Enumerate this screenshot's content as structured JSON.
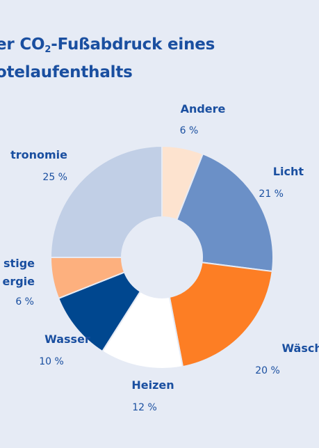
{
  "title": {
    "line1_pre": "er CO",
    "line1_sub": "2",
    "line1_post": "-Fußabdruck eines",
    "line2": "otelaufenthalts"
  },
  "colors": {
    "background": "#e6ebf5",
    "text": "#1a4fa0"
  },
  "chart_data": {
    "type": "pie",
    "donut": true,
    "labels": [
      "Andere",
      "Licht",
      "Wäsche",
      "Heizen",
      "Wasser",
      "stige ergie",
      "tronomie"
    ],
    "values": [
      6,
      21,
      20,
      12,
      10,
      6,
      25
    ],
    "value_labels": [
      "6 %",
      "21 %",
      "20 %",
      "12 %",
      "10 %",
      "6 %",
      "25 %"
    ],
    "colors": [
      "#fde3cf",
      "#6b90c7",
      "#fd7e24",
      "#ffffff",
      "#00478f",
      "#fdb07e",
      "#c1cfe6"
    ],
    "start_angle_deg": 0,
    "direction": "clockwise"
  }
}
